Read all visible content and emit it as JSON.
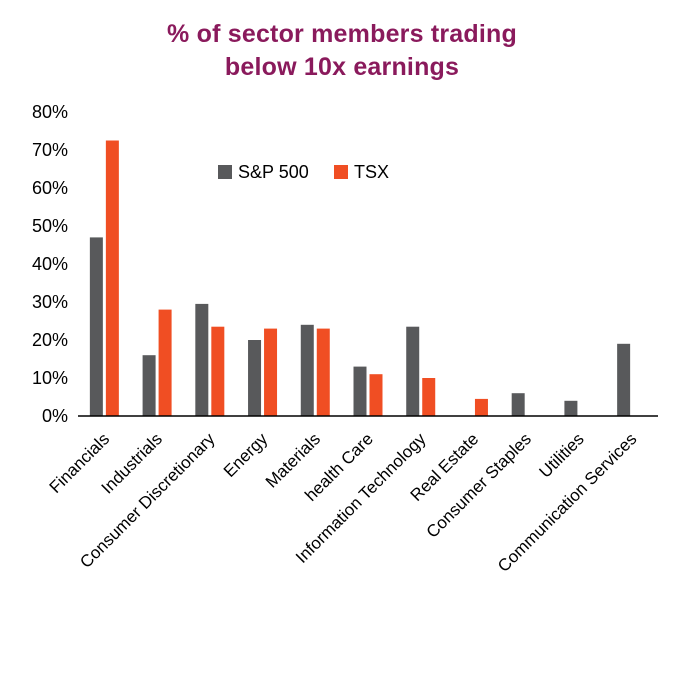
{
  "title_color": "#8a1a5c",
  "chart_data": {
    "type": "bar",
    "title_lines": [
      "% of sector members trading",
      "below 10x earnings"
    ],
    "categories": [
      "Financials",
      "Industrials",
      "Consumer Discretionary",
      "Energy",
      "Materials",
      "health Care",
      "Information Technology",
      "Real Estate",
      "Consumer Staples",
      "Utilities",
      "Communication Services"
    ],
    "series": [
      {
        "name": "S&P 500",
        "color": "#58595b",
        "values": [
          47,
          16,
          29.5,
          20,
          24,
          13,
          23.5,
          0,
          6,
          4,
          19
        ]
      },
      {
        "name": "TSX",
        "color": "#f04e23",
        "values": [
          72.5,
          28,
          23.5,
          23,
          23,
          11,
          10,
          4.5,
          0,
          0,
          0
        ]
      }
    ],
    "ylim": [
      0,
      80
    ],
    "ytick_step": 10,
    "ytick_suffix": "%",
    "grid": false,
    "legend_position": "top-inside",
    "axis_text_color": "#000000"
  }
}
